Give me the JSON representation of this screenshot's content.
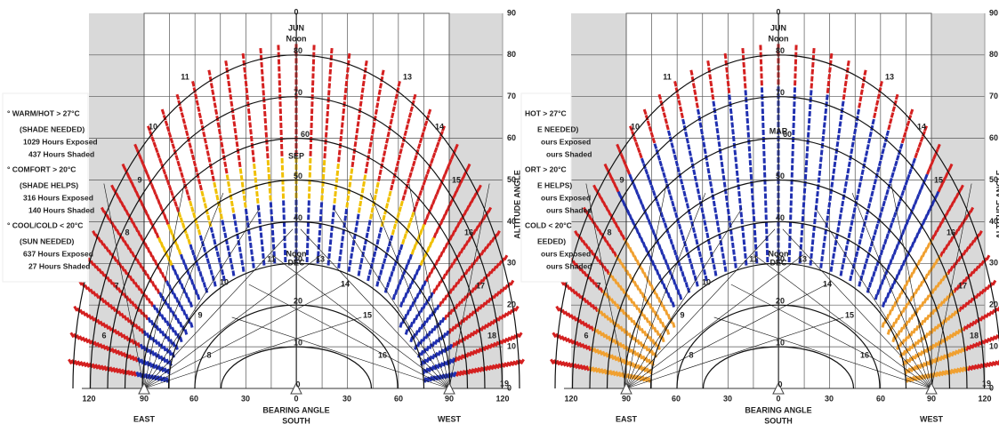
{
  "legend": {
    "warm": {
      "title": "° WARM/HOT  > 27°C",
      "note": "(SHADE NEEDED)",
      "exposed": "1029 Hours Exposed",
      "shaded": "437 Hours Shaded"
    },
    "comfort": {
      "title": "° COMFORT > 20°C",
      "note": "(SHADE HELPS)",
      "exposed": "316 Hours Exposed",
      "shaded": "140 Hours Shaded"
    },
    "cool": {
      "title": "° COOL/COLD  < 20°C",
      "note": "(SUN NEEDED)",
      "exposed": "637 Hours Exposed",
      "shaded": "27 Hours Shaded"
    }
  },
  "legend_partial": {
    "warm": {
      "title": "HOT  > 27°C",
      "note": "E NEEDED)",
      "exposed": "ours Exposed",
      "shaded": "ours Shaded"
    },
    "comfort": {
      "title": "ORT  > 20°C",
      "note": "E HELPS)",
      "exposed": "ours Exposed",
      "shaded": "ours Shaded"
    },
    "cool": {
      "title": "COLD  < 20°C",
      "note": "EEDED)",
      "exposed": "ours Exposed",
      "shaded": "ours Shaded"
    }
  },
  "panels": [
    {
      "altitude_ticks": [
        "0",
        "10",
        "20",
        "30",
        "40",
        "50",
        "60",
        "70",
        "80",
        "90"
      ],
      "altitude_axis": "ALTITUDE ANGLE",
      "bearing_ticks": [
        "120",
        "90",
        "60",
        "30",
        "0",
        "30",
        "60",
        "90",
        "120"
      ],
      "bearing_axis": "BEARING ANGLE",
      "east": "EAST",
      "south": "SOUTH",
      "west": "WEST",
      "top_zero": "0",
      "jun": "JUN",
      "jun_noon": "Noon",
      "equinox": "SEP",
      "dec_noon": "Noon",
      "dec": "DEC",
      "center_altitudes": [
        "80",
        "70",
        "60",
        "50",
        "40",
        "30",
        "20",
        "10",
        "0"
      ],
      "outer_hours": [
        "6",
        "7",
        "8",
        "9",
        "10",
        "11",
        "13",
        "14",
        "15",
        "16",
        "17",
        "18",
        "19"
      ],
      "inner_hours": [
        "8",
        "9",
        "10",
        "11",
        "13",
        "14",
        "15",
        "16"
      ]
    },
    {
      "altitude_ticks": [
        "0",
        "10",
        "20",
        "30",
        "40",
        "50",
        "60",
        "70",
        "80",
        "90"
      ],
      "altitude_axis": "ALTITUDE ANGLE",
      "bearing_ticks": [
        "120",
        "90",
        "60",
        "30",
        "0",
        "30",
        "60",
        "90",
        "120"
      ],
      "bearing_axis": "BEARING ANGLE",
      "east": "EAST",
      "south": "SOUTH",
      "west": "WEST",
      "top_zero": "0",
      "jun": "JUN",
      "jun_noon": "Noon",
      "equinox": "MAR",
      "dec_noon": "Noon",
      "dec": "DEC",
      "center_altitudes": [
        "80",
        "70",
        "60",
        "50",
        "40",
        "30",
        "20",
        "10",
        "0"
      ],
      "outer_hours": [
        "6",
        "7",
        "8",
        "9",
        "10",
        "11",
        "13",
        "14",
        "15",
        "16",
        "17",
        "18",
        "19"
      ],
      "inner_hours": [
        "8",
        "9",
        "10",
        "11",
        "13",
        "14",
        "15",
        "16"
      ]
    }
  ]
}
